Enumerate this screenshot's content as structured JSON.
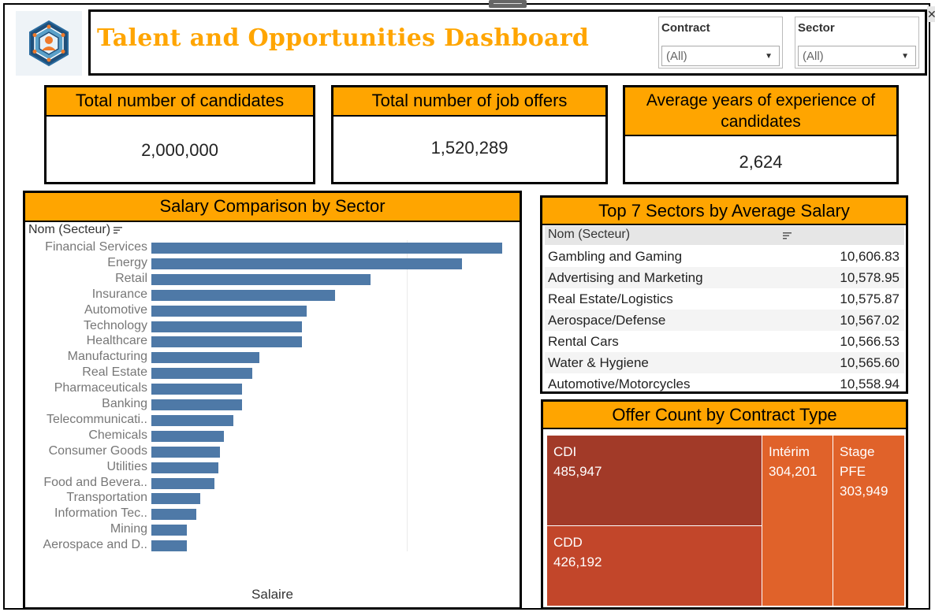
{
  "header": {
    "title": "Talent and Opportunities Dashboard",
    "logo_icon": "network-people-logo-icon",
    "filters": [
      {
        "label": "Contract",
        "value": "(All)"
      },
      {
        "label": "Sector",
        "value": "(All)"
      }
    ]
  },
  "kpis": [
    {
      "label": "Total number of candidates",
      "value": "2,000,000"
    },
    {
      "label": "Total number of job offers",
      "value": "1,520,289"
    },
    {
      "label": "Average years of experience of candidates",
      "value": "2,624"
    }
  ],
  "colors": {
    "accent": "#ffa500",
    "bar": "#4e79a7",
    "treemap": [
      "#a23a28",
      "#c2462a",
      "#e0622a",
      "#e0622a"
    ]
  },
  "chart_data": [
    {
      "type": "bar",
      "orientation": "horizontal",
      "title": "Salary Comparison by Sector",
      "ylabel": "Nom (Secteur)",
      "xlabel": "Salaire",
      "categories": [
        "Financial Services",
        "Energy",
        "Retail",
        "Insurance",
        "Automotive",
        "Technology",
        "Healthcare",
        "Manufacturing",
        "Real Estate",
        "Pharmaceuticals",
        "Banking",
        "Telecommunicati..",
        "Chemicals",
        "Consumer Goods",
        "Utilities",
        "Food and Bevera..",
        "Transportation",
        "Information Tec..",
        "Mining",
        "Aerospace and D.."
      ],
      "values": [
        445,
        394,
        278,
        233,
        197,
        191,
        191,
        137,
        128,
        115,
        115,
        104,
        92,
        87,
        85,
        80,
        62,
        57,
        45,
        45
      ]
    },
    {
      "type": "table",
      "title": "Top 7 Sectors by Average Salary",
      "column_header": "Nom (Secteur)",
      "rows": [
        {
          "name": "Gambling and Gaming",
          "value": "10,606.83"
        },
        {
          "name": "Advertising and Marketing",
          "value": "10,578.95"
        },
        {
          "name": "Real Estate/Logistics",
          "value": "10,575.87"
        },
        {
          "name": "Aerospace/Defense",
          "value": "10,567.02"
        },
        {
          "name": "Rental Cars",
          "value": "10,566.53"
        },
        {
          "name": "Water & Hygiene",
          "value": "10,565.60"
        },
        {
          "name": "Automotive/Motorcycles",
          "value": "10,558.94"
        }
      ]
    },
    {
      "type": "treemap",
      "title": "Offer Count by Contract Type",
      "items": [
        {
          "name": "CDI",
          "value": "485,947"
        },
        {
          "name": "CDD",
          "value": "426,192"
        },
        {
          "name": "Intérim",
          "value": "304,201"
        },
        {
          "name": "Stage PFE",
          "value": "303,949"
        }
      ]
    }
  ]
}
